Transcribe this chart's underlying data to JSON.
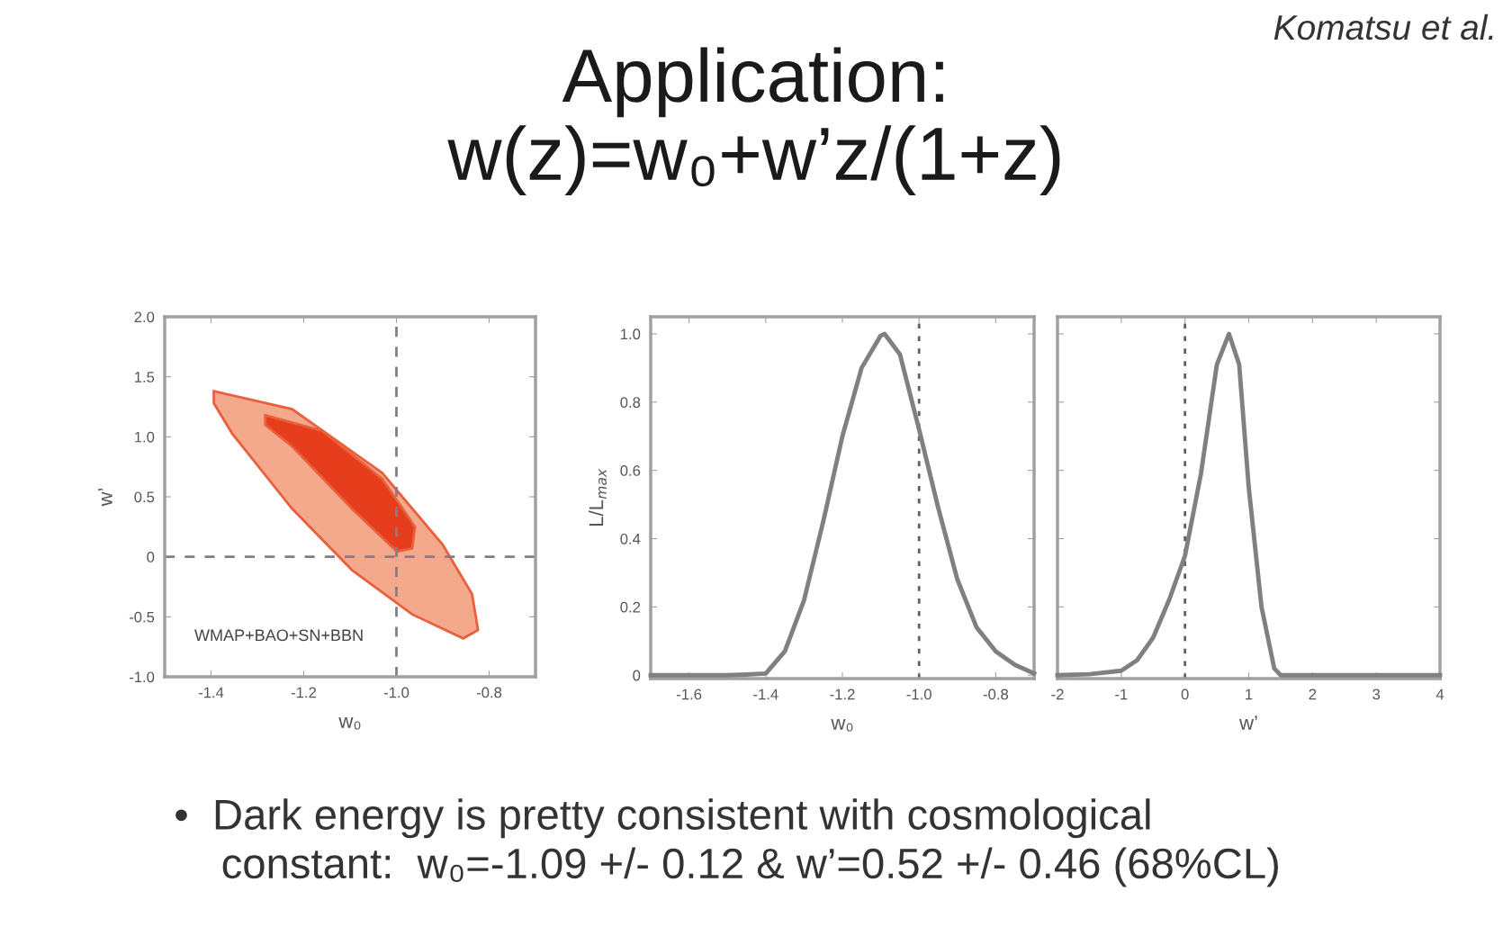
{
  "chart_data": [
    {
      "type": "area",
      "title": "Application:\nw(z)=w₀+w’z/(1+z)",
      "xlabel": "w₀",
      "ylabel": "w’",
      "annotations": [
        "WMAP+BAO+SN+BBN",
        "Komatsu et al.",
        "•  Dark energy is pretty consistent with cosmological\n    constant:  w₀=-1.09 +/- 0.12 & w’=0.52 +/- 0.46 (68%CL)"
      ],
      "series": [
        {
          "color": "#f4a88c",
          "x": [
            -1.394,
            -1.225,
            -1.031,
            -0.9,
            -0.837,
            -0.824,
            -0.856,
            -0.966,
            -1.096,
            -1.225,
            -1.355,
            -1.394
          ],
          "values": [
            1.38,
            1.23,
            0.7,
            0.1,
            -0.31,
            -0.61,
            -0.68,
            -0.48,
            -0.11,
            0.4,
            1.03,
            1.28
          ]
        },
        {
          "color": "#e63e1c",
          "x": [
            -1.283,
            -1.16,
            -1.031,
            -0.96,
            -0.966,
            -0.999,
            -1.096,
            -1.225,
            -1.283
          ],
          "values": [
            1.18,
            1.05,
            0.65,
            0.25,
            0.07,
            0.045,
            0.4,
            0.92,
            1.1
          ]
        }
      ],
      "xlim": [
        -1.5,
        -0.7
      ],
      "xticks": [
        -1.4,
        -1.2,
        {
          "value": -1.0,
          "label": "-1.0"
        },
        -0.8
      ],
      "ylim": [
        -1.0,
        2.0
      ],
      "yticks": [
        {
          "value": -1.0,
          "label": "-1.0"
        },
        -0.5,
        0,
        0.5,
        {
          "value": 1.0,
          "label": "1.0"
        },
        1.5,
        {
          "value": 2.0,
          "label": "2.0"
        }
      ],
      "ref_lines": [
        {
          "axis": "x",
          "value": -1.0,
          "line_style": "dashed",
          "color": "#808080"
        },
        {
          "axis": "y",
          "value": 0,
          "line_style": "dashed",
          "color": "#808080"
        }
      ]
    },
    {
      "type": "line",
      "xlabel": "w₀",
      "ylabel": "L/L$_{max}$",
      "series": [
        {
          "color": "#808080",
          "x": [
            -1.7,
            -1.5,
            -1.45,
            -1.4,
            -1.35,
            -1.3,
            -1.25,
            -1.2,
            -1.15,
            -1.1,
            -1.09,
            -1.05,
            -1.0,
            -0.95,
            -0.9,
            -0.85,
            -0.8,
            -0.75,
            -0.7
          ],
          "values": [
            0,
            0,
            0.002,
            0.005,
            0.07,
            0.22,
            0.45,
            0.7,
            0.9,
            0.995,
            1.0,
            0.94,
            0.72,
            0.49,
            0.28,
            0.14,
            0.07,
            0.03,
            0.005
          ]
        }
      ],
      "xlim": [
        -1.7,
        -0.7
      ],
      "xticks": [
        -1.6,
        -1.4,
        -1.2,
        {
          "value": -1.0,
          "label": "-1.0"
        },
        -0.8
      ],
      "ylim": [
        -0.01,
        1.05
      ],
      "yticks": [
        0,
        0.2,
        0.4,
        0.6,
        0.8,
        {
          "value": 1.0,
          "label": "1.0"
        }
      ],
      "ref_lines": [
        {
          "axis": "x",
          "value": -1.0,
          "line_style": "dotted",
          "color": "#606060"
        }
      ]
    },
    {
      "type": "line",
      "xlabel": "w’",
      "series": [
        {
          "color": "#808080",
          "x": [
            -2,
            -1.5,
            -1,
            -0.75,
            -0.5,
            -0.25,
            0,
            0.25,
            0.5,
            0.69,
            0.85,
            1.0,
            1.2,
            1.4,
            1.5,
            4
          ],
          "values": [
            0,
            0.003,
            0.013,
            0.044,
            0.11,
            0.22,
            0.35,
            0.59,
            0.91,
            1.0,
            0.91,
            0.55,
            0.2,
            0.02,
            0,
            0
          ]
        }
      ],
      "xlim": [
        -2,
        4
      ],
      "xticks": [
        -2,
        -1,
        0,
        1,
        2,
        3,
        4
      ],
      "ylim": [
        -0.01,
        1.05
      ],
      "yticks": [
        0,
        0.2,
        0.4,
        0.6,
        0.8,
        1.0
      ],
      "tick_labels": "x",
      "ref_lines": [
        {
          "axis": "x",
          "value": 0,
          "line_style": "dotted",
          "color": "#606060"
        }
      ]
    }
  ]
}
